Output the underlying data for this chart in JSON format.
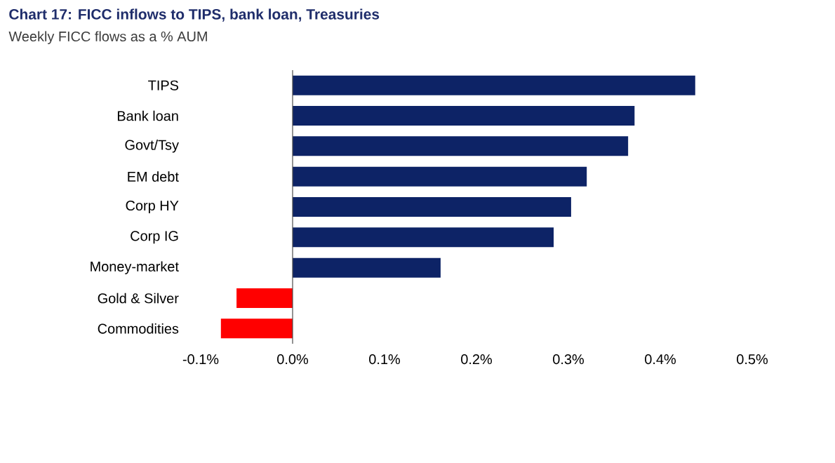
{
  "chart_data": {
    "type": "bar",
    "orientation": "horizontal",
    "title": "Chart 17: FICC inflows to TIPS, bank loan, Treasuries",
    "subtitle": "Weekly FICC flows as a % AUM",
    "categories": [
      "TIPS",
      "Bank loan",
      "Govt/Tsy",
      "EM debt",
      "Corp HY",
      "Corp IG",
      "Money-market",
      "Gold & Silver",
      "Commodities"
    ],
    "values": [
      0.438,
      0.372,
      0.365,
      0.32,
      0.303,
      0.284,
      0.161,
      -0.061,
      -0.078
    ],
    "colors": [
      "#0d2366",
      "#0d2366",
      "#0d2366",
      "#0d2366",
      "#0d2366",
      "#0d2366",
      "#0d2366",
      "#ff0000",
      "#ff0000"
    ],
    "xlim": [
      -0.1,
      0.5
    ],
    "xticks": [
      {
        "value": -0.1,
        "label": "-0.1%"
      },
      {
        "value": 0,
        "label": "0.0%"
      },
      {
        "value": 0.1,
        "label": "0.1%"
      },
      {
        "value": 0.2,
        "label": "0.2%"
      },
      {
        "value": 0.3,
        "label": "0.3%"
      },
      {
        "value": 0.4,
        "label": "0.4%"
      },
      {
        "value": 0.5,
        "label": "0.5%"
      }
    ]
  }
}
